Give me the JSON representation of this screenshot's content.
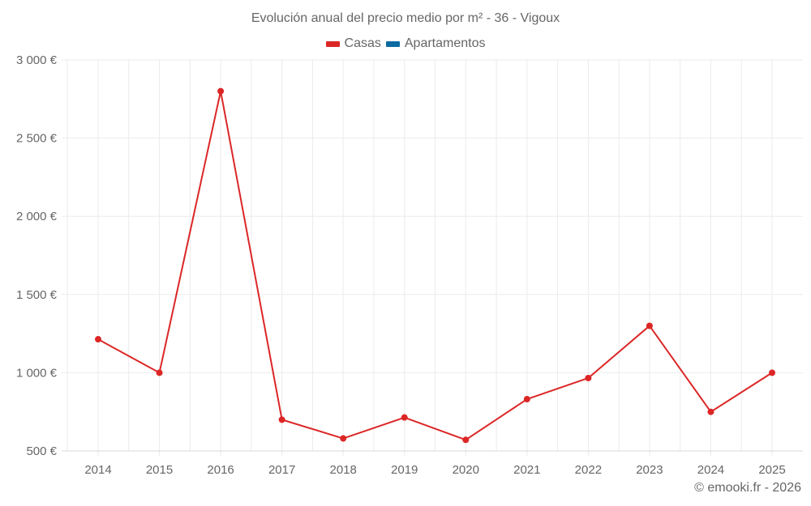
{
  "title": "Evolución anual del precio medio por m² - 36 - Vigoux",
  "legend": [
    {
      "label": "Casas",
      "color": "#dc2626"
    },
    {
      "label": "Apartamentos",
      "color": "#0b6aa2"
    }
  ],
  "footer": "© emooki.fr - 2026",
  "chart_data": {
    "type": "line",
    "title": "Evolución anual del precio medio por m² - 36 - Vigoux",
    "xlabel": "",
    "ylabel": "",
    "categories": [
      "2014",
      "2015",
      "2016",
      "2017",
      "2018",
      "2019",
      "2020",
      "2021",
      "2022",
      "2023",
      "2024",
      "2025"
    ],
    "series": [
      {
        "name": "Casas",
        "color": "#dc2626",
        "values": [
          1214,
          1000,
          2800,
          700,
          580,
          714,
          571,
          831,
          966,
          1300,
          750,
          1000
        ]
      },
      {
        "name": "Apartamentos",
        "color": "#0b6aa2",
        "values": []
      }
    ],
    "ylim": [
      500,
      3000
    ],
    "yticks": [
      500,
      1000,
      1500,
      2000,
      2500,
      3000
    ],
    "ytick_labels": [
      "500 €",
      "1 000 €",
      "1 500 €",
      "2 000 €",
      "2 500 €",
      "3 000 €"
    ],
    "grid": true,
    "legend_position": "top"
  }
}
